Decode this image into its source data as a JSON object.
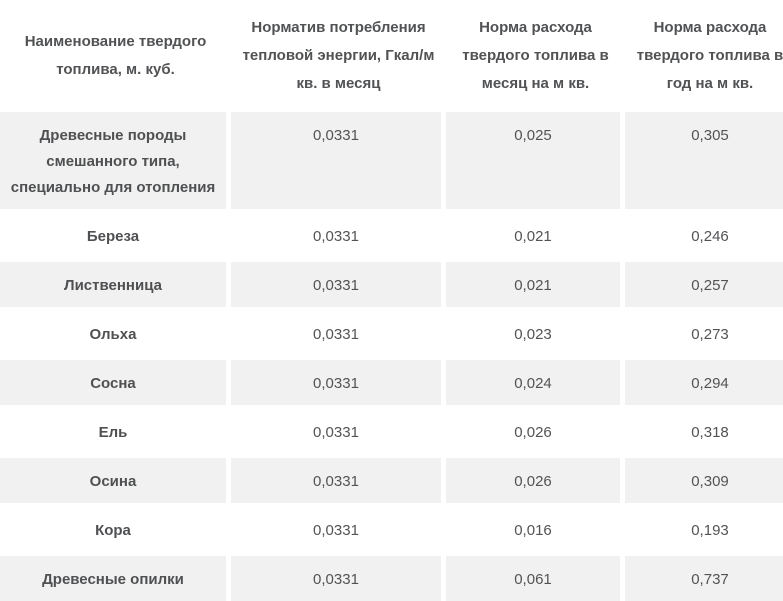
{
  "table": {
    "headers": [
      "Наименование твердого топлива, м. куб.",
      "Норматив потребления тепловой энергии, Гкал/м кв. в месяц",
      "Норма расхода твердого топлива в месяц на м кв.",
      "Норма расхода твердого топлива в год на м кв."
    ],
    "rows": [
      {
        "name": "Древесные породы смешанного типа, специально для отопления",
        "values": [
          "0,0331",
          "0,025",
          "0,305"
        ]
      },
      {
        "name": "Береза",
        "values": [
          "0,0331",
          "0,021",
          "0,246"
        ]
      },
      {
        "name": "Лиственница",
        "values": [
          "0,0331",
          "0,021",
          "0,257"
        ]
      },
      {
        "name": "Ольха",
        "values": [
          "0,0331",
          "0,023",
          "0,273"
        ]
      },
      {
        "name": "Сосна",
        "values": [
          "0,0331",
          "0,024",
          "0,294"
        ]
      },
      {
        "name": "Ель",
        "values": [
          "0,0331",
          "0,026",
          "0,318"
        ]
      },
      {
        "name": "Осина",
        "values": [
          "0,0331",
          "0,026",
          "0,309"
        ]
      },
      {
        "name": "Кора",
        "values": [
          "0,0331",
          "0,016",
          "0,193"
        ]
      },
      {
        "name": "Древесные опилки",
        "values": [
          "0,0331",
          "0,061",
          "0,737"
        ]
      }
    ]
  },
  "colors": {
    "row_stripe": "#f1f1f1",
    "background": "#ffffff",
    "text": "#525355"
  }
}
